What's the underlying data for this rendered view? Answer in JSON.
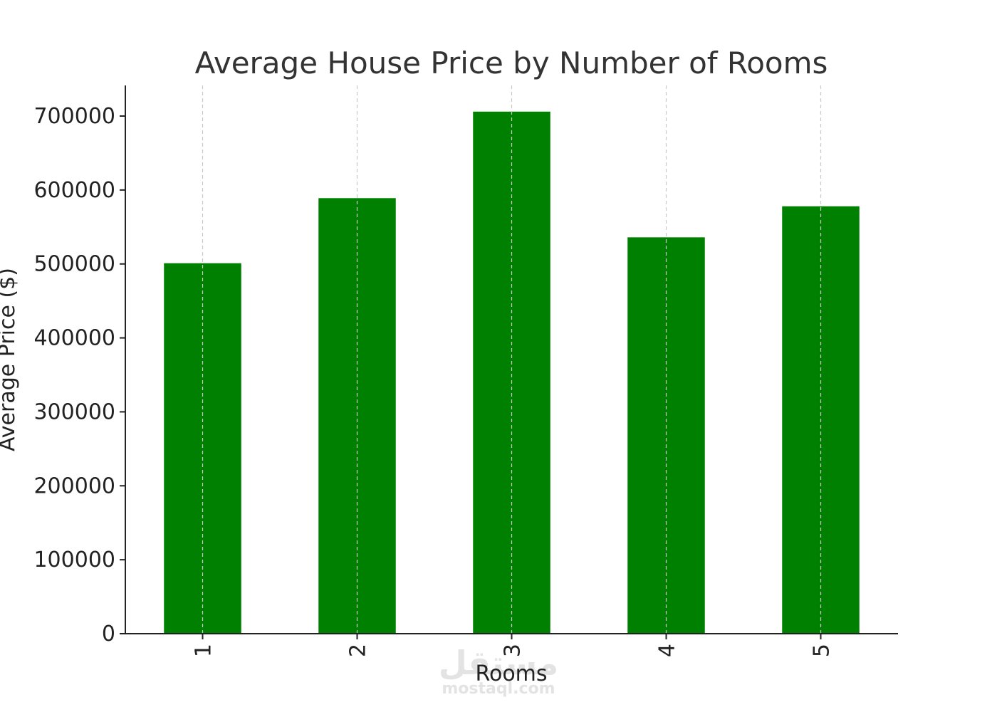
{
  "chart_data": {
    "type": "bar",
    "title": "Average House Price by Number of Rooms",
    "xlabel": "Rooms",
    "ylabel": "Average Price ($)",
    "categories": [
      "1",
      "2",
      "3",
      "4",
      "5"
    ],
    "values": [
      501000,
      589000,
      706000,
      536000,
      578000
    ],
    "ylim": [
      0,
      740000
    ],
    "yticks": [
      0,
      100000,
      200000,
      300000,
      400000,
      500000,
      600000,
      700000
    ],
    "ytick_labels": [
      "0",
      "100000",
      "200000",
      "300000",
      "400000",
      "500000",
      "600000",
      "700000"
    ],
    "bar_color": "#008000",
    "grid": "x-axis dashed",
    "legend": "none"
  },
  "watermark": {
    "arabic": "مستقل",
    "latin": "mostaql.com"
  }
}
